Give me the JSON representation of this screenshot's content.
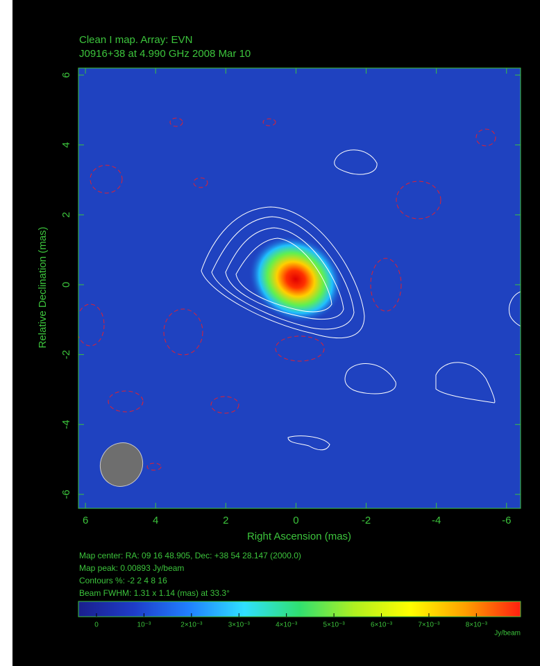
{
  "chart_data": {
    "type": "image",
    "title": "Clean I map.  Array:  EVN",
    "subtitle": "J0916+38 at 4.990 GHz 2008 Mar 10",
    "x_label": "Right Ascension  (mas)",
    "y_label": "Relative Declination  (mas)",
    "xlim": [
      6.2,
      -6.4
    ],
    "xticks": [
      6,
      4,
      2,
      0,
      -2,
      -4,
      -6
    ],
    "ylim": [
      -6.4,
      6.2
    ],
    "yticks": [
      -6,
      -4,
      -2,
      0,
      2,
      4,
      6
    ],
    "annotations": [
      "Map center:  RA: 09 16 48.905,  Dec: +38 54 28.147 (2000.0)",
      "Map peak: 0.00893 Jy/beam",
      "Contours %: -2 2 4 8 16",
      "Beam FWHM: 1.31 x 1.14 (mas) at 33.3°"
    ],
    "colorbar": {
      "lim": [
        -0.00038,
        0.00893
      ],
      "ticks": [
        0,
        {
          "value": 0.001,
          "label": "10⁻³"
        },
        {
          "value": 0.002,
          "label": "2×10⁻³"
        },
        {
          "value": 0.003,
          "label": "3×10⁻³"
        },
        {
          "value": 0.004,
          "label": "4×10⁻³"
        },
        {
          "value": 0.005,
          "label": "5×10⁻³"
        },
        {
          "value": 0.006,
          "label": "6×10⁻³"
        },
        {
          "value": 0.007,
          "label": "7×10⁻³"
        },
        {
          "value": 0.008,
          "label": "8×10⁻³"
        }
      ],
      "label": "Jy/beam",
      "colors": [
        "#1a1f8c",
        "#1e3cc8",
        "#2080ff",
        "#30e0ff",
        "#30e070",
        "#b0f020",
        "#ffff00",
        "#ffa000",
        "#ff2010"
      ]
    },
    "text_color": "#3cc43c"
  }
}
